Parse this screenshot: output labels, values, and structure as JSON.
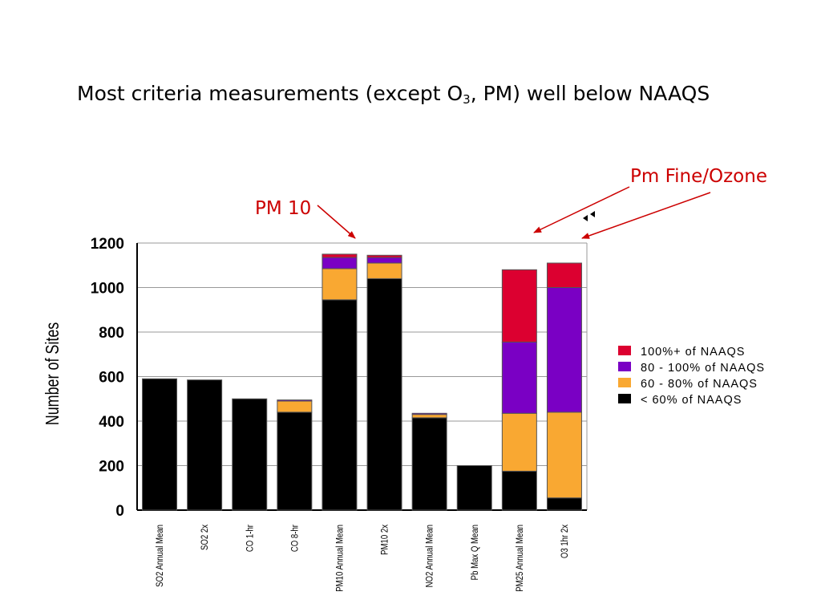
{
  "slide": {
    "title_part1": "Most criteria measurements (except O",
    "title_sub": "3",
    "title_part2": ", PM) well below NAAQS",
    "annotation_pm10": "PM 10",
    "annotation_pmfine": "Pm Fine/Ozone"
  },
  "chart_data": {
    "type": "bar",
    "stacked": true,
    "title": "",
    "xlabel": "",
    "ylabel": "Number of Sites",
    "ylim": [
      0,
      1200
    ],
    "yticks": [
      0,
      200,
      400,
      600,
      800,
      1000,
      1200
    ],
    "grid": true,
    "legend_position": "right",
    "categories": [
      "SO2 Annual Mean",
      "SO2 2x",
      "CO 1-hr",
      "CO 8-hr",
      "PM10 Annual Mean",
      "PM10 2x",
      "NO2 Annual Mean",
      "Pb Max Q Mean",
      "PM25 Annual Mean",
      "O3 1hr 2x"
    ],
    "series": [
      {
        "name": "< 60% of NAAQS",
        "color": "#000000",
        "values": [
          590,
          585,
          500,
          440,
          945,
          1040,
          415,
          200,
          175,
          55
        ]
      },
      {
        "name": "60 - 80% of NAAQS",
        "color": "#f9a832",
        "values": [
          0,
          0,
          0,
          50,
          140,
          70,
          15,
          0,
          260,
          385
        ]
      },
      {
        "name": "80 - 100% of NAAQS",
        "color": "#7a00c4",
        "values": [
          0,
          0,
          0,
          5,
          50,
          25,
          5,
          0,
          320,
          560
        ]
      },
      {
        "name": "100%+ of NAAQS",
        "color": "#dc0030",
        "values": [
          0,
          0,
          0,
          0,
          15,
          10,
          0,
          0,
          325,
          110
        ]
      }
    ],
    "legend_order": [
      "100%+ of NAAQS",
      "80 - 100% of NAAQS",
      "60 - 80% of NAAQS",
      "< 60% of NAAQS"
    ]
  }
}
